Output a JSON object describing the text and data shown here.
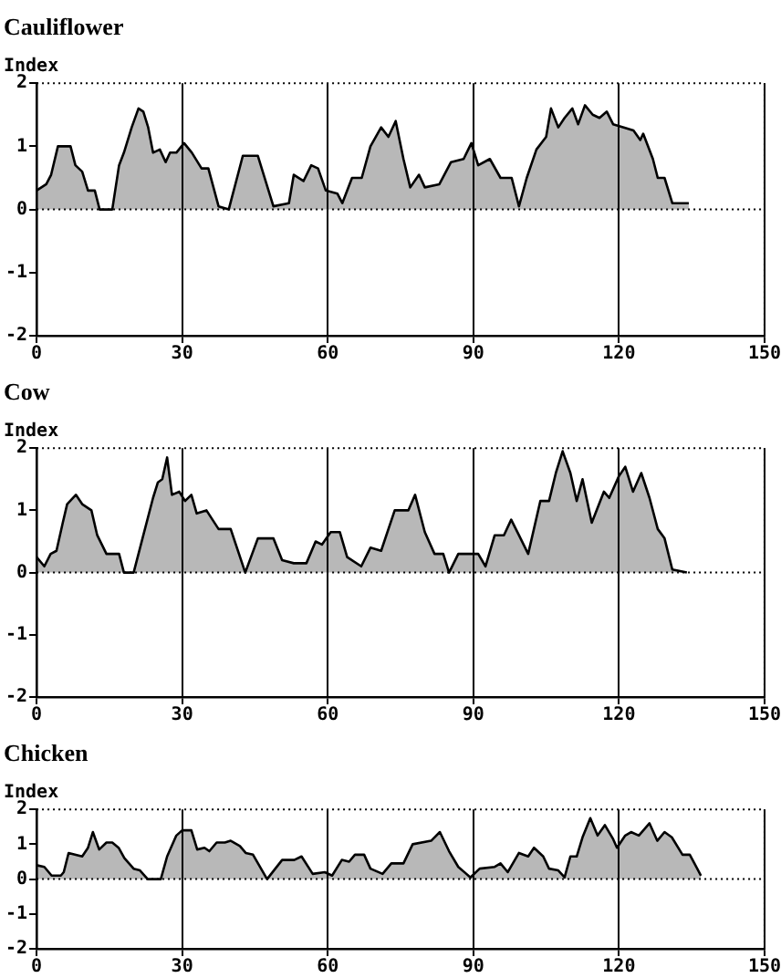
{
  "chart_data": [
    {
      "type": "area",
      "title": "Cauliflower",
      "ylabel": "Index",
      "color": "#000000",
      "marker": "none",
      "grid": "x",
      "xlim": [
        0,
        150
      ],
      "xticks": [
        0,
        30,
        60,
        90,
        120,
        150
      ],
      "ylim": [
        -2,
        2
      ],
      "yticks": [
        -2,
        -1,
        0,
        1,
        2
      ],
      "ref_lines": [
        {
          "axis": "y",
          "value": 0,
          "line_style": "dotted"
        }
      ],
      "x": [
        0,
        2,
        3,
        4.4,
        7,
        8,
        9.4,
        10.6,
        12,
        13,
        15.6,
        17,
        18,
        19.6,
        21,
        22,
        23,
        24,
        25.4,
        26.6,
        27.5,
        28.8,
        30.4,
        32,
        34,
        35.4,
        37.5,
        39.6,
        42.5,
        45.6,
        48.8,
        52,
        53,
        55,
        56.6,
        58,
        59.6,
        62,
        63,
        65,
        67,
        68.8,
        71,
        72.5,
        74,
        75.6,
        77,
        78.8,
        80,
        83,
        85.4,
        88,
        89.6,
        91,
        93.4,
        95.6,
        97.9,
        99.4,
        101,
        103,
        105,
        106,
        107.5,
        108.8,
        110.4,
        111.6,
        113,
        114.6,
        116,
        117.5,
        118.8,
        121,
        123,
        124.4,
        125,
        127,
        128,
        129.4,
        131,
        134.4
      ],
      "values": [
        0.3,
        0.4,
        0.55,
        1.0,
        1.0,
        0.7,
        0.6,
        0.3,
        0.3,
        0,
        0,
        0.7,
        0.9,
        1.3,
        1.6,
        1.55,
        1.3,
        0.9,
        0.95,
        0.75,
        0.9,
        0.9,
        1.05,
        0.9,
        0.65,
        0.65,
        0.05,
        0,
        0.85,
        0.85,
        0.05,
        0.1,
        0.55,
        0.45,
        0.7,
        0.65,
        0.3,
        0.25,
        0.1,
        0.5,
        0.5,
        1.0,
        1.3,
        1.15,
        1.4,
        0.8,
        0.35,
        0.55,
        0.35,
        0.4,
        0.75,
        0.8,
        1.05,
        0.7,
        0.8,
        0.5,
        0.5,
        0.05,
        0.5,
        0.95,
        1.15,
        1.6,
        1.3,
        1.45,
        1.6,
        1.35,
        1.65,
        1.5,
        1.45,
        1.55,
        1.35,
        1.3,
        1.25,
        1.1,
        1.2,
        0.8,
        0.5,
        0.5,
        0.1,
        0.1
      ]
    },
    {
      "type": "area",
      "title": "Cow",
      "ylabel": "Index",
      "color": "#000000",
      "marker": "none",
      "grid": "x",
      "xlim": [
        0,
        150
      ],
      "xticks": [
        0,
        30,
        60,
        90,
        120,
        150
      ],
      "ylim": [
        -2,
        2
      ],
      "yticks": [
        -2,
        -1,
        0,
        1,
        2
      ],
      "ref_lines": [
        {
          "axis": "y",
          "value": 0,
          "line_style": "dotted"
        }
      ],
      "x": [
        0,
        1.6,
        2.9,
        4.1,
        5.4,
        6.3,
        8.1,
        9.4,
        11.3,
        12.5,
        14.4,
        17,
        18,
        20,
        22,
        24,
        25,
        25.9,
        26.9,
        27.9,
        29.4,
        30.6,
        31.9,
        33,
        35,
        37.5,
        40,
        43,
        45.6,
        48.8,
        50.6,
        53,
        55.6,
        57.5,
        58.8,
        60.6,
        62.5,
        64,
        66.9,
        68.8,
        71,
        73.8,
        76.6,
        78,
        80,
        82,
        83.8,
        85,
        86.9,
        91,
        92.5,
        94.4,
        96.3,
        97.8,
        99.4,
        101.3,
        103.8,
        105.6,
        107,
        108.4,
        110,
        111.3,
        112.5,
        114.4,
        116.9,
        118,
        120,
        121.3,
        122.9,
        124.6,
        126.3,
        128,
        129.4,
        131,
        134
      ],
      "values": [
        0.25,
        0.1,
        0.3,
        0.35,
        0.8,
        1.1,
        1.25,
        1.1,
        1.0,
        0.6,
        0.3,
        0.3,
        0,
        0,
        0.6,
        1.2,
        1.45,
        1.5,
        1.85,
        1.25,
        1.3,
        1.15,
        1.25,
        0.95,
        1.0,
        0.7,
        0.7,
        0,
        0.55,
        0.55,
        0.2,
        0.15,
        0.15,
        0.5,
        0.45,
        0.65,
        0.65,
        0.25,
        0.1,
        0.4,
        0.35,
        1.0,
        1.0,
        1.25,
        0.65,
        0.3,
        0.3,
        0,
        0.3,
        0.3,
        0.1,
        0.6,
        0.6,
        0.85,
        0.6,
        0.3,
        1.15,
        1.15,
        1.6,
        1.95,
        1.6,
        1.15,
        1.5,
        0.8,
        1.3,
        1.2,
        1.55,
        1.7,
        1.3,
        1.6,
        1.2,
        0.7,
        0.55,
        0.05,
        0
      ]
    },
    {
      "type": "area",
      "title": "Chicken",
      "ylabel": "Index",
      "color": "#000000",
      "marker": "none",
      "grid": "x",
      "xlim": [
        0,
        150
      ],
      "xticks": [
        0,
        30,
        60,
        90,
        120,
        150
      ],
      "ylim": [
        -2,
        2
      ],
      "yticks": [
        -2,
        -1,
        0,
        1,
        2
      ],
      "ref_lines": [
        {
          "axis": "y",
          "value": 0,
          "line_style": "dotted"
        }
      ],
      "x": [
        0,
        1.6,
        3.1,
        5,
        5.6,
        6.6,
        9.4,
        10.6,
        11.6,
        12.9,
        14.4,
        15.6,
        16.9,
        18.1,
        20,
        21.3,
        22.9,
        25.6,
        26.9,
        28.8,
        30,
        31.9,
        33.1,
        34.6,
        35.6,
        37.1,
        38.8,
        40,
        41.9,
        43.1,
        44.6,
        47.5,
        50.6,
        53.1,
        54.6,
        56.9,
        59.4,
        60.9,
        62.9,
        64.4,
        65.6,
        67.5,
        68.8,
        71.3,
        73.1,
        75.6,
        77.5,
        81.3,
        83.1,
        85,
        86.9,
        89.4,
        91.3,
        94.4,
        95.6,
        97.1,
        99.4,
        101.3,
        102.5,
        104.4,
        105.6,
        107.5,
        108.8,
        110,
        111.3,
        112.5,
        114.1,
        115.6,
        117.1,
        118.8,
        119.6,
        121.3,
        122.5,
        124.1,
        126.3,
        127.9,
        129.4,
        130.9,
        133.1,
        134.6,
        136.9
      ],
      "values": [
        0.4,
        0.35,
        0.1,
        0.1,
        0.2,
        0.75,
        0.65,
        0.9,
        1.35,
        0.85,
        1.05,
        1.05,
        0.9,
        0.6,
        0.3,
        0.25,
        0,
        0,
        0.65,
        1.25,
        1.4,
        1.4,
        0.85,
        0.9,
        0.8,
        1.05,
        1.05,
        1.1,
        0.95,
        0.75,
        0.7,
        0,
        0.55,
        0.55,
        0.65,
        0.15,
        0.2,
        0.1,
        0.55,
        0.5,
        0.7,
        0.7,
        0.3,
        0.15,
        0.45,
        0.45,
        1.0,
        1.1,
        1.35,
        0.8,
        0.35,
        0.05,
        0.3,
        0.35,
        0.45,
        0.2,
        0.75,
        0.65,
        0.9,
        0.65,
        0.3,
        0.25,
        0.05,
        0.65,
        0.65,
        1.2,
        1.75,
        1.25,
        1.55,
        1.15,
        0.9,
        1.25,
        1.35,
        1.25,
        1.6,
        1.1,
        1.35,
        1.2,
        0.7,
        0.7,
        0.1
      ]
    }
  ]
}
